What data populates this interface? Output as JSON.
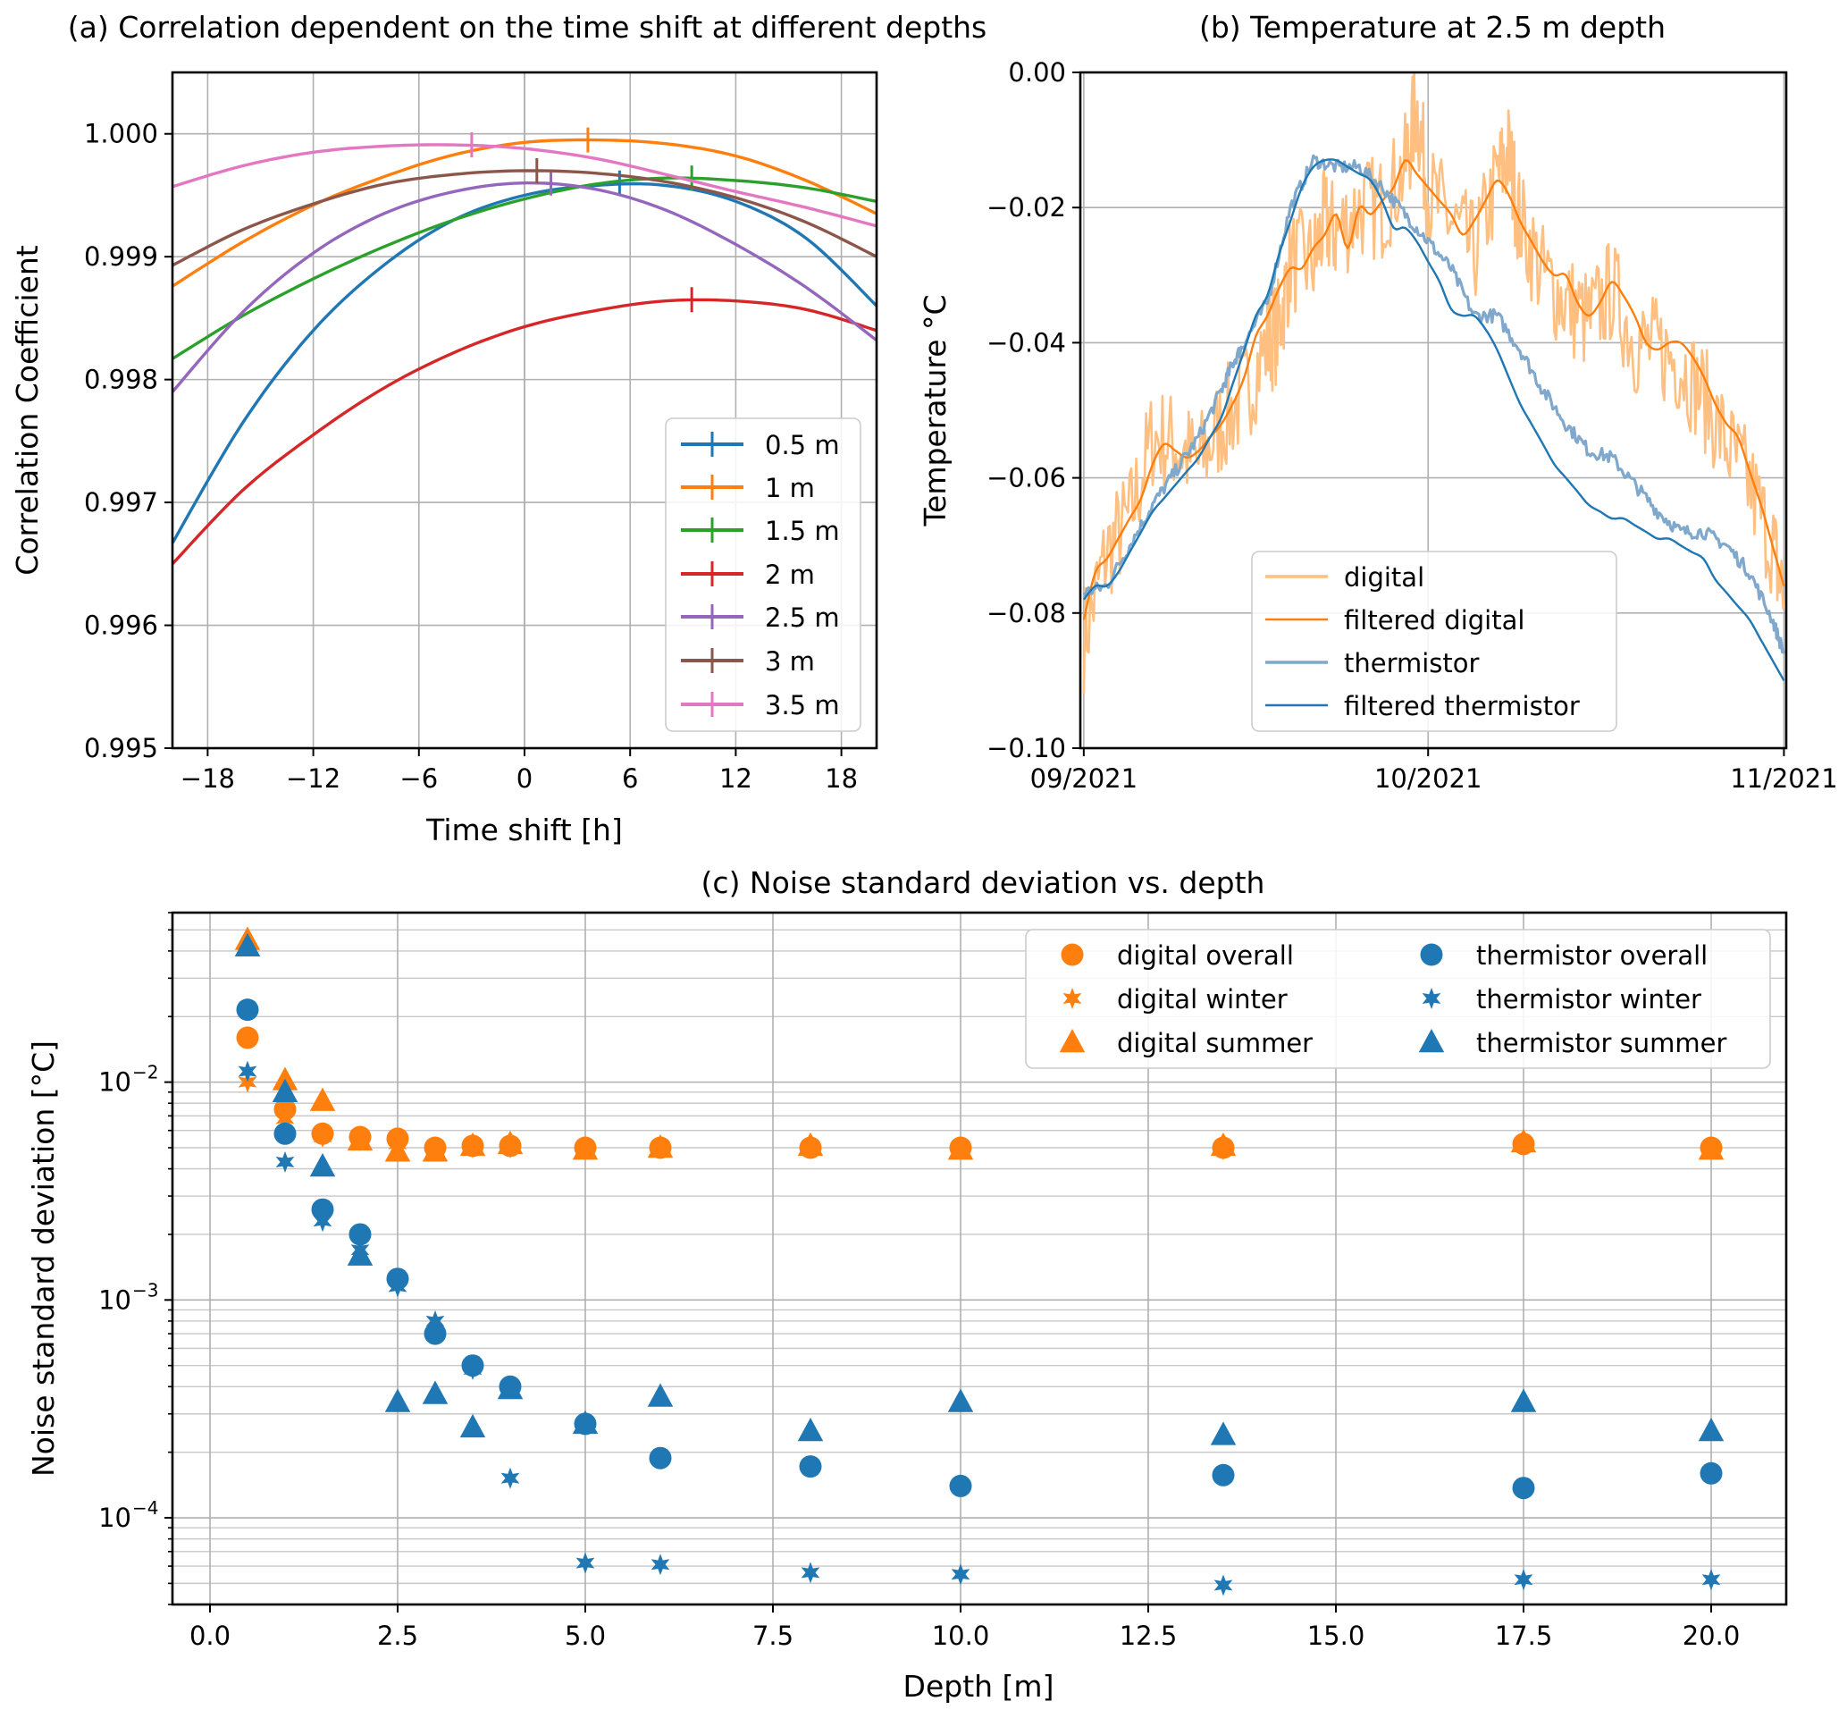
{
  "colors": {
    "c0": "#1f77b4",
    "c1": "#ff7f0e",
    "c2": "#2ca02c",
    "c3": "#d62728",
    "c4": "#9467bd",
    "c5": "#8c564b",
    "c6": "#e377c2",
    "digital_light": "#ffbf80",
    "thermistor_light": "#7fa8cc"
  },
  "chart_data": [
    {
      "id": "a",
      "type": "line",
      "title": "(a) Correlation dependent on the time shift at different depths",
      "xlabel": "Time shift [h]",
      "ylabel": "Correlation Coefficient",
      "xlim": [
        -20,
        20
      ],
      "ylim": [
        0.995,
        1.0005
      ],
      "xticks": [
        -18,
        -12,
        -6,
        0,
        6,
        12,
        18
      ],
      "xtick_labels": [
        "−18",
        "−12",
        "−6",
        "0",
        "6",
        "12",
        "18"
      ],
      "yticks": [
        0.995,
        0.996,
        0.997,
        0.998,
        0.999,
        1.0
      ],
      "ytick_labels": [
        "0.995",
        "0.996",
        "0.997",
        "0.998",
        "0.999",
        "1.000"
      ],
      "legend_location": "lower-right",
      "series": [
        {
          "name": "0.5 m",
          "color": "c0",
          "x": [
            -20,
            -16,
            -12,
            -8,
            -4,
            0,
            4,
            8,
            12,
            16,
            20
          ],
          "y": [
            0.99667,
            0.99765,
            0.9984,
            0.99893,
            0.9993,
            0.9995,
            0.99958,
            0.99958,
            0.99945,
            0.99915,
            0.9986
          ],
          "peak_x": 5.4,
          "peak_y": 0.9996
        },
        {
          "name": "1 m",
          "color": "c1",
          "x": [
            -20,
            -16,
            -12,
            -8,
            -4,
            0,
            4,
            8,
            12,
            16,
            20
          ],
          "y": [
            0.99876,
            0.99912,
            0.99942,
            0.99965,
            0.99983,
            0.99993,
            0.99995,
            0.99992,
            0.99982,
            0.99962,
            0.99935
          ],
          "peak_x": 3.6,
          "peak_y": 0.99995
        },
        {
          "name": "1.5 m",
          "color": "c2",
          "x": [
            -20,
            -16,
            -12,
            -8,
            -4,
            0,
            4,
            8,
            12,
            16,
            20
          ],
          "y": [
            0.99817,
            0.99852,
            0.99882,
            0.99908,
            0.9993,
            0.99947,
            0.99959,
            0.99964,
            0.99962,
            0.99956,
            0.99945
          ],
          "peak_x": 9.5,
          "peak_y": 0.99964
        },
        {
          "name": "2 m",
          "color": "c3",
          "x": [
            -20,
            -16,
            -12,
            -8,
            -4,
            0,
            4,
            8,
            12,
            16,
            20
          ],
          "y": [
            0.9965,
            0.9971,
            0.99755,
            0.99793,
            0.99822,
            0.99843,
            0.99856,
            0.99864,
            0.99864,
            0.99857,
            0.9984
          ],
          "peak_x": 9.5,
          "peak_y": 0.99865
        },
        {
          "name": "2.5 m",
          "color": "c4",
          "x": [
            -20,
            -16,
            -12,
            -8,
            -4,
            0,
            4,
            8,
            12,
            16,
            20
          ],
          "y": [
            0.9979,
            0.99855,
            0.99903,
            0.99935,
            0.99953,
            0.9996,
            0.99955,
            0.99938,
            0.9991,
            0.99875,
            0.99832
          ],
          "peak_x": 1.5,
          "peak_y": 0.9996
        },
        {
          "name": "3 m",
          "color": "c5",
          "x": [
            -20,
            -16,
            -12,
            -8,
            -4,
            0,
            4,
            8,
            12,
            16,
            20
          ],
          "y": [
            0.99893,
            0.99922,
            0.99943,
            0.99959,
            0.99967,
            0.9997,
            0.99968,
            0.99961,
            0.99948,
            0.99928,
            0.999
          ],
          "peak_x": 0.7,
          "peak_y": 0.9997
        },
        {
          "name": "3.5 m",
          "color": "c6",
          "x": [
            -20,
            -16,
            -12,
            -8,
            -4,
            0,
            4,
            8,
            12,
            16,
            20
          ],
          "y": [
            0.99957,
            0.99974,
            0.99985,
            0.9999,
            0.99991,
            0.99988,
            0.9998,
            0.99967,
            0.99953,
            0.9994,
            0.99925
          ],
          "peak_x": -3.0,
          "peak_y": 0.99991
        }
      ]
    },
    {
      "id": "b",
      "type": "line",
      "title": "(b) Temperature at 2.5 m depth",
      "xlabel": "",
      "ylabel": "Temperature °C",
      "xlim": [
        -0.3,
        61.2
      ],
      "ylim": [
        -0.1,
        0.0
      ],
      "xticks": [
        0,
        30,
        61
      ],
      "xtick_labels": [
        "09/2021",
        "10/2021",
        "11/2021"
      ],
      "yticks": [
        -0.1,
        -0.08,
        -0.06,
        -0.04,
        -0.02,
        0.0
      ],
      "ytick_labels": [
        "−0.10",
        "−0.08",
        "−0.06",
        "−0.04",
        "−0.02",
        "0.00"
      ],
      "legend_location": "lower-center",
      "series": [
        {
          "name": "digital",
          "color": "digital_light",
          "x": [
            0,
            2,
            4,
            6,
            8,
            10,
            12,
            14,
            16,
            17,
            18,
            20,
            21,
            22,
            24,
            26,
            28,
            29,
            30,
            32,
            34,
            36,
            37,
            38,
            40,
            42,
            44,
            46,
            48,
            50,
            52,
            54,
            56,
            58,
            60,
            61
          ],
          "y": [
            -0.084,
            -0.071,
            -0.066,
            -0.054,
            -0.055,
            -0.058,
            -0.052,
            -0.048,
            -0.04,
            -0.038,
            -0.028,
            -0.028,
            -0.022,
            -0.024,
            -0.02,
            -0.02,
            -0.014,
            -0.005,
            -0.018,
            -0.022,
            -0.027,
            -0.016,
            -0.012,
            -0.022,
            -0.03,
            -0.034,
            -0.037,
            -0.032,
            -0.04,
            -0.041,
            -0.043,
            -0.048,
            -0.055,
            -0.061,
            -0.07,
            -0.078
          ],
          "jitter": 0.008
        },
        {
          "name": "filtered digital",
          "color": "c1",
          "x": [
            0,
            1,
            2,
            3,
            4,
            5,
            6,
            7,
            8,
            9,
            10,
            11,
            12,
            13,
            14,
            15,
            16,
            17,
            18,
            19,
            20,
            21,
            22,
            23,
            24,
            25,
            26,
            27,
            28,
            29,
            30,
            31,
            32,
            33,
            34,
            35,
            36,
            37,
            38,
            39,
            40,
            41,
            42,
            43,
            44,
            45,
            46,
            47,
            48,
            49,
            50,
            51,
            52,
            53,
            54,
            55,
            56,
            57,
            58,
            59,
            60,
            61
          ],
          "y": [
            -0.081,
            -0.074,
            -0.072,
            -0.069,
            -0.066,
            -0.063,
            -0.058,
            -0.055,
            -0.056,
            -0.057,
            -0.056,
            -0.054,
            -0.052,
            -0.049,
            -0.045,
            -0.039,
            -0.036,
            -0.032,
            -0.029,
            -0.029,
            -0.026,
            -0.024,
            -0.021,
            -0.026,
            -0.02,
            -0.021,
            -0.019,
            -0.017,
            -0.013,
            -0.015,
            -0.017,
            -0.019,
            -0.021,
            -0.024,
            -0.022,
            -0.019,
            -0.016,
            -0.018,
            -0.022,
            -0.025,
            -0.028,
            -0.03,
            -0.03,
            -0.034,
            -0.036,
            -0.034,
            -0.031,
            -0.033,
            -0.036,
            -0.04,
            -0.041,
            -0.04,
            -0.04,
            -0.042,
            -0.045,
            -0.049,
            -0.052,
            -0.054,
            -0.059,
            -0.064,
            -0.07,
            -0.076
          ]
        },
        {
          "name": "thermistor",
          "color": "thermistor_light",
          "x": [
            0,
            2,
            4,
            6,
            8,
            10,
            12,
            13,
            14,
            16,
            18,
            20,
            22,
            24,
            26,
            28,
            30,
            32,
            34,
            36,
            38,
            40,
            42,
            44,
            46,
            48,
            50,
            52,
            54,
            56,
            58,
            60,
            61
          ],
          "y": [
            -0.077,
            -0.076,
            -0.07,
            -0.064,
            -0.059,
            -0.054,
            -0.047,
            -0.043,
            -0.04,
            -0.034,
            -0.02,
            -0.013,
            -0.014,
            -0.014,
            -0.017,
            -0.021,
            -0.025,
            -0.029,
            -0.036,
            -0.036,
            -0.041,
            -0.047,
            -0.052,
            -0.056,
            -0.057,
            -0.061,
            -0.065,
            -0.068,
            -0.068,
            -0.07,
            -0.074,
            -0.081,
            -0.086
          ],
          "jitter": 0.001
        },
        {
          "name": "filtered thermistor",
          "color": "c0",
          "x": [
            0,
            1,
            2,
            3,
            4,
            5,
            6,
            7,
            8,
            9,
            10,
            11,
            12,
            13,
            14,
            15,
            16,
            17,
            18,
            19,
            20,
            21,
            22,
            23,
            24,
            25,
            26,
            27,
            28,
            29,
            30,
            31,
            32,
            33,
            34,
            35,
            36,
            37,
            38,
            39,
            40,
            41,
            42,
            43,
            44,
            45,
            46,
            47,
            48,
            49,
            50,
            51,
            52,
            53,
            54,
            55,
            56,
            57,
            58,
            59,
            60,
            61
          ],
          "y": [
            -0.078,
            -0.076,
            -0.076,
            -0.074,
            -0.071,
            -0.068,
            -0.065,
            -0.063,
            -0.061,
            -0.059,
            -0.057,
            -0.054,
            -0.051,
            -0.046,
            -0.041,
            -0.036,
            -0.033,
            -0.027,
            -0.022,
            -0.017,
            -0.014,
            -0.013,
            -0.013,
            -0.014,
            -0.015,
            -0.016,
            -0.019,
            -0.023,
            -0.023,
            -0.025,
            -0.028,
            -0.031,
            -0.035,
            -0.036,
            -0.036,
            -0.038,
            -0.041,
            -0.045,
            -0.049,
            -0.052,
            -0.055,
            -0.058,
            -0.06,
            -0.062,
            -0.064,
            -0.065,
            -0.066,
            -0.066,
            -0.067,
            -0.068,
            -0.069,
            -0.069,
            -0.07,
            -0.071,
            -0.072,
            -0.075,
            -0.077,
            -0.079,
            -0.081,
            -0.084,
            -0.087,
            -0.09
          ]
        }
      ]
    },
    {
      "id": "c",
      "type": "scatter",
      "title": "(c) Noise standard deviation vs. depth",
      "xlabel": "Depth [m]",
      "ylabel": "Noise standard deviation [°C]",
      "yscale": "log",
      "xlim": [
        -0.5,
        21.0
      ],
      "ylim": [
        4e-05,
        0.06
      ],
      "xticks": [
        0.0,
        2.5,
        5.0,
        7.5,
        10.0,
        12.5,
        15.0,
        17.5,
        20.0
      ],
      "xtick_labels": [
        "0.0",
        "2.5",
        "5.0",
        "7.5",
        "10.0",
        "12.5",
        "15.0",
        "17.5",
        "20.0"
      ],
      "ytick_labels": [
        "10",
        "10",
        "10"
      ],
      "ytick_exponents": [
        "−2",
        "−3",
        "−4"
      ],
      "legend_location": "upper-right",
      "depths": [
        0.5,
        1.0,
        1.5,
        2.0,
        2.5,
        3.0,
        3.5,
        4.0,
        5.0,
        6.0,
        8.0,
        10.0,
        13.5,
        17.5,
        20.0
      ],
      "series": [
        {
          "name": "digital overall",
          "color": "c1",
          "marker": "circle",
          "values": [
            0.016,
            0.0075,
            0.0058,
            0.0056,
            0.0055,
            0.005,
            0.0051,
            0.0051,
            0.005,
            0.005,
            0.005,
            0.005,
            0.005,
            0.0052,
            0.005
          ]
        },
        {
          "name": "digital winter",
          "color": "c1",
          "marker": "star",
          "values": [
            0.01,
            0.0068,
            0.0056,
            0.0054,
            0.0052,
            0.0049,
            0.005,
            0.005,
            0.0049,
            0.005,
            0.005,
            0.0049,
            0.0049,
            0.0051,
            0.0049
          ]
        },
        {
          "name": "digital summer",
          "color": "c1",
          "marker": "triangle",
          "values": [
            0.045,
            0.0102,
            0.0082,
            0.0054,
            0.0048,
            0.0048,
            0.0051,
            0.0052,
            0.0049,
            0.005,
            0.0051,
            0.0049,
            0.0051,
            0.0053,
            0.0049
          ]
        },
        {
          "name": "thermistor overall",
          "color": "c0",
          "marker": "circle",
          "values": [
            0.0215,
            0.0058,
            0.0026,
            0.002,
            0.00125,
            0.0007,
            0.0005,
            0.0004,
            0.00027,
            0.000188,
            0.000172,
            0.00014,
            0.000157,
            0.000137,
            0.00016
          ]
        },
        {
          "name": "thermistor winter",
          "color": "c0",
          "marker": "star",
          "values": [
            0.0112,
            0.0043,
            0.0023,
            0.0017,
            0.00115,
            0.0008,
            0.00048,
            0.000152,
            6.2e-05,
            6.1e-05,
            5.6e-05,
            5.5e-05,
            4.9e-05,
            5.2e-05,
            5.2e-05
          ]
        },
        {
          "name": "thermistor summer",
          "color": "c0",
          "marker": "triangle",
          "values": [
            0.042,
            0.009,
            0.0041,
            0.0016,
            0.00034,
            0.00037,
            0.00026,
            0.00039,
            0.00027,
            0.00036,
            0.00025,
            0.00034,
            0.00024,
            0.00034,
            0.00025
          ]
        }
      ]
    }
  ]
}
